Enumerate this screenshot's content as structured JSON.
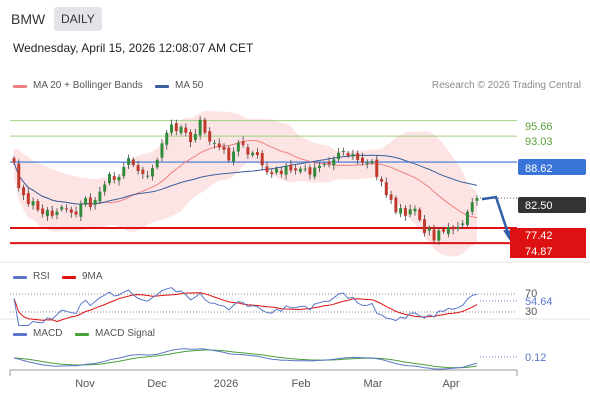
{
  "header": {
    "symbol": "BMW",
    "period_button": "DAILY",
    "timestamp": "Wednesday, April 15, 2026 12:08:07 AM CET"
  },
  "legend": {
    "ma20": "MA 20 + Bollinger Bands",
    "ma50": "MA 50",
    "credit": "Research © 2026 Trading Central",
    "rsi": "RSI",
    "rsi_ma": "9MA",
    "macd": "MACD",
    "macd_signal": "MACD Signal"
  },
  "colors": {
    "ma20": "#f08080",
    "ma50": "#3a5f9e",
    "band_fill": "#fde4e4",
    "candle_up": "#2e8b3a",
    "candle_down": "#c0392b",
    "resistance": "#9fd07f",
    "pivot": "#3a74d8",
    "support": "#dd1111",
    "rsi": "#5a78c8",
    "macd": "#5a78c8",
    "macd_signal": "#4aa13a"
  },
  "chart_data": [
    {
      "type": "candlestick",
      "title": "BMW",
      "x_labels": [
        "Nov",
        "Dec",
        "2026",
        "Feb",
        "Mar",
        "Apr"
      ],
      "ylim": [
        72,
        100
      ],
      "last_price": 82.5,
      "levels": {
        "resistance": [
          95.66,
          93.03
        ],
        "pivot": 88.62,
        "support": [
          77.42,
          74.87
        ]
      },
      "forecast": "down toward 77.42",
      "closes": [
        88.5,
        84.2,
        83.0,
        81.5,
        82.0,
        80.5,
        79.8,
        80.5,
        79.5,
        80.2,
        81.0,
        80.6,
        80.0,
        79.7,
        81.5,
        82.5,
        81.0,
        82.2,
        83.6,
        84.8,
        86.6,
        85.6,
        86.1,
        87.8,
        89.3,
        88.1,
        87.1,
        86.6,
        86.3,
        87.6,
        89.0,
        91.8,
        93.6,
        95.0,
        93.9,
        94.6,
        93.6,
        92.0,
        93.4,
        95.8,
        93.6,
        92.1,
        91.9,
        91.1,
        90.7,
        88.9,
        90.4,
        91.9,
        91.5,
        89.9,
        90.2,
        89.8,
        88.1,
        86.9,
        86.6,
        87.5,
        86.6,
        88.0,
        87.2,
        87.2,
        87.5,
        87.5,
        86.5,
        87.7,
        88.0,
        88.3,
        88.3,
        89.1,
        90.2,
        90.5,
        89.7,
        90.0,
        89.0,
        88.5,
        88.5,
        88.8,
        86.1,
        85.3,
        83.0,
        82.2,
        80.1,
        80.8,
        79.5,
        80.6,
        80.7,
        78.8,
        76.6,
        77.4,
        75.3,
        77.0,
        76.8,
        77.6,
        77.2,
        77.6,
        78.2,
        80.2,
        81.8,
        82.5
      ],
      "bollinger": {
        "upper": "upper band",
        "lower": "lower band",
        "middle": "MA 20"
      },
      "ma50": "MA 50"
    },
    {
      "type": "line",
      "title": "RSI",
      "ylim": [
        30,
        70
      ],
      "y_ticks": [
        70,
        30
      ],
      "current": 54.64,
      "series": [
        {
          "name": "RSI"
        },
        {
          "name": "9MA"
        }
      ]
    },
    {
      "type": "line",
      "title": "MACD",
      "current": 0.12,
      "series": [
        {
          "name": "MACD"
        },
        {
          "name": "MACD Signal"
        }
      ]
    }
  ],
  "price_labels": {
    "r1": "95.66",
    "r2": "93.03",
    "pivot": "88.62",
    "last": "82.50",
    "s1": "77.42",
    "s2": "74.87",
    "rsi_top": "70",
    "rsi_bottom": "30",
    "rsi_current": "54.64",
    "macd_current": "0.12"
  },
  "x_axis": {
    "labels": [
      "Nov",
      "Dec",
      "2026",
      "Feb",
      "Mar",
      "Apr"
    ]
  }
}
